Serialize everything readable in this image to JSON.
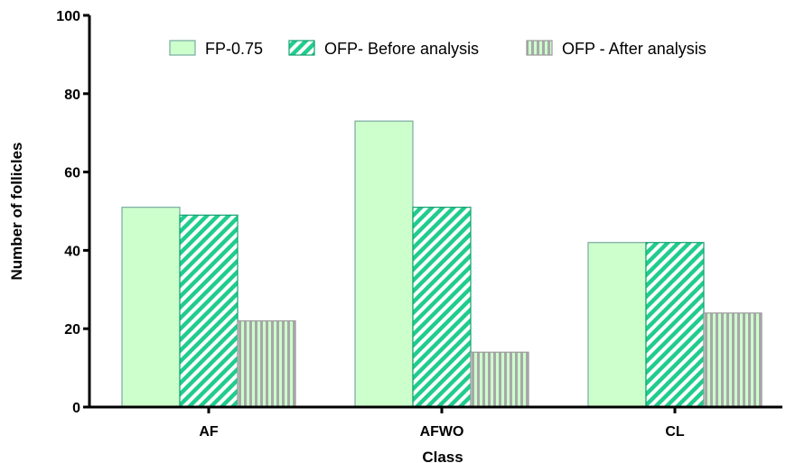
{
  "chart_data": {
    "type": "bar",
    "xlabel": "Class",
    "ylabel": "Number of follicles",
    "categories": [
      "AF",
      "AFWO",
      "CL"
    ],
    "ylim": [
      0,
      100
    ],
    "yticks": [
      0,
      20,
      40,
      60,
      80,
      100
    ],
    "legend_position": "top",
    "grid": false,
    "series": [
      {
        "name": "FP-0.75",
        "values": [
          51,
          73,
          42
        ],
        "fill": "#ccffcc",
        "stroke": "#7aa9a0",
        "pattern": "solid"
      },
      {
        "name": "OFP- Before analysis",
        "values": [
          49,
          51,
          42
        ],
        "fill": "#20cc8c",
        "stroke": "#0fa070",
        "pattern": "diagonal"
      },
      {
        "name": "OFP - After analysis",
        "values": [
          22,
          14,
          24
        ],
        "fill": "#a8a8a8",
        "stroke": "#9a9a9a",
        "pattern": "vertical"
      }
    ]
  }
}
